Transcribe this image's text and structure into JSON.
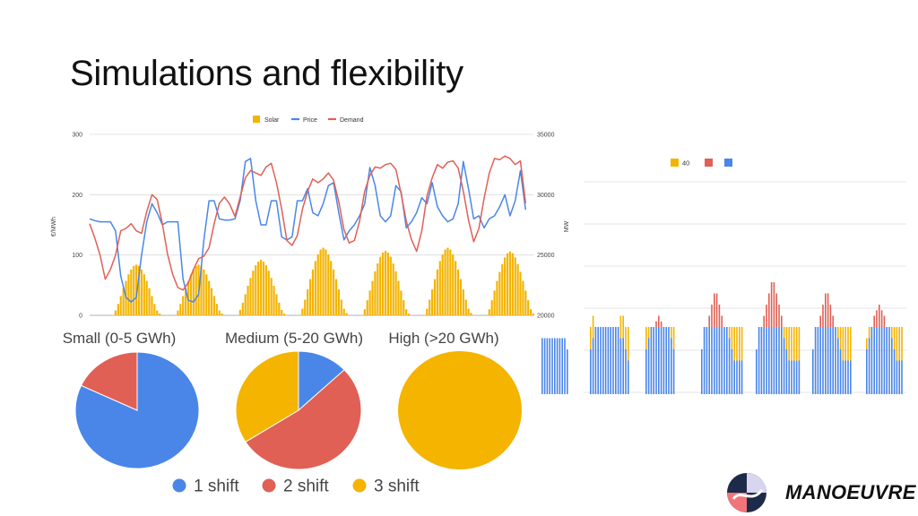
{
  "slide_title": "Simulations and flexibility",
  "chart_data": [
    {
      "type": "line",
      "legend": [
        "Solar",
        "Price",
        "Demand"
      ],
      "colors": {
        "Solar": "#f4b400",
        "Price": "#4a86e8",
        "Demand": "#e06055"
      },
      "y_left_label": "€/MWh",
      "y_left_ticks": [
        "300",
        "200",
        "100",
        "0"
      ],
      "y_left_lim": [
        0,
        300
      ],
      "y_right_ticks": [
        "35000",
        "30000",
        "25000",
        "20000"
      ],
      "y_right_lim": [
        20000,
        35000
      ],
      "grid": true,
      "x": [
        0,
        2,
        4,
        6,
        8,
        10,
        12,
        14,
        16,
        18,
        20,
        22,
        24,
        26,
        28,
        30,
        32,
        34,
        36,
        38,
        40,
        42,
        44,
        46,
        48,
        50,
        52,
        54,
        56,
        58,
        60,
        62,
        64,
        66,
        68,
        70,
        72,
        74,
        76,
        78,
        80,
        82,
        84,
        86,
        88,
        90,
        92,
        94,
        96,
        98,
        100,
        102,
        104,
        106,
        108,
        110,
        112,
        114,
        116,
        118,
        120,
        122,
        124,
        126,
        128,
        130,
        132,
        134,
        136,
        138,
        140,
        142,
        144,
        146,
        148,
        150,
        152,
        154,
        156,
        158,
        160,
        162,
        164,
        166,
        168
      ],
      "series": [
        {
          "name": "Price",
          "axis": "left",
          "values": [
            160,
            157,
            155,
            155,
            155,
            140,
            65,
            30,
            22,
            30,
            100,
            155,
            185,
            170,
            150,
            155,
            155,
            155,
            60,
            25,
            22,
            35,
            125,
            190,
            190,
            160,
            158,
            158,
            160,
            190,
            255,
            260,
            190,
            150,
            150,
            190,
            190,
            130,
            125,
            130,
            190,
            190,
            210,
            170,
            165,
            185,
            215,
            220,
            170,
            125,
            140,
            150,
            165,
            185,
            245,
            215,
            165,
            155,
            165,
            215,
            205,
            145,
            155,
            170,
            195,
            185,
            220,
            180,
            165,
            155,
            160,
            185,
            255,
            210,
            160,
            165,
            145,
            160,
            165,
            180,
            200,
            165,
            190,
            240,
            175
          ]
        },
        {
          "name": "Demand",
          "axis": "right",
          "values": [
            27600,
            26400,
            25000,
            23000,
            23800,
            25000,
            27000,
            27200,
            27600,
            27000,
            26800,
            28600,
            30000,
            29600,
            27600,
            25100,
            23400,
            22300,
            22100,
            22700,
            23800,
            24700,
            24900,
            25600,
            27600,
            29300,
            29800,
            29200,
            28200,
            29800,
            31400,
            32000,
            31800,
            31600,
            32300,
            32600,
            31000,
            28800,
            26200,
            25800,
            26600,
            28800,
            30300,
            31300,
            31000,
            31300,
            31800,
            31200,
            29400,
            27100,
            26000,
            26200,
            27800,
            30300,
            31600,
            32300,
            32200,
            32500,
            32600,
            32100,
            30100,
            27800,
            26300,
            25300,
            27000,
            29900,
            31400,
            32500,
            32200,
            32700,
            32800,
            32200,
            30300,
            27900,
            26100,
            27200,
            29700,
            31800,
            33000,
            32900,
            33200,
            33000,
            32500,
            32800,
            29300
          ]
        },
        {
          "name": "Solar",
          "axis": "left",
          "kind": "bars",
          "x": [
            10,
            11,
            12,
            13,
            14,
            15,
            16,
            17,
            18,
            19,
            20,
            21,
            22,
            23,
            24,
            25,
            26,
            27,
            34,
            35,
            36,
            37,
            38,
            39,
            40,
            41,
            42,
            43,
            44,
            45,
            46,
            47,
            48,
            49,
            50,
            51,
            58,
            59,
            60,
            61,
            62,
            63,
            64,
            65,
            66,
            67,
            68,
            69,
            70,
            71,
            72,
            73,
            74,
            75,
            82,
            83,
            84,
            85,
            86,
            87,
            88,
            89,
            90,
            91,
            92,
            93,
            94,
            95,
            96,
            97,
            98,
            99,
            106,
            107,
            108,
            109,
            110,
            111,
            112,
            113,
            114,
            115,
            116,
            117,
            118,
            119,
            120,
            121,
            122,
            123,
            130,
            131,
            132,
            133,
            134,
            135,
            136,
            137,
            138,
            139,
            140,
            141,
            142,
            143,
            144,
            145,
            146,
            147,
            154,
            155,
            156,
            157,
            158,
            159,
            160,
            161,
            162,
            163,
            164,
            165,
            166,
            167,
            168,
            169,
            170,
            171
          ],
          "values": [
            8,
            19,
            32,
            45,
            57,
            68,
            76,
            82,
            84,
            82,
            76,
            68,
            57,
            45,
            32,
            19,
            8,
            3,
            8,
            19,
            32,
            45,
            57,
            68,
            76,
            82,
            84,
            82,
            76,
            68,
            57,
            45,
            32,
            19,
            8,
            3,
            9,
            21,
            35,
            49,
            62,
            74,
            83,
            89,
            92,
            89,
            83,
            74,
            62,
            49,
            35,
            21,
            9,
            3,
            11,
            26,
            43,
            60,
            76,
            90,
            101,
            109,
            112,
            109,
            101,
            90,
            76,
            60,
            43,
            26,
            11,
            4,
            10,
            25,
            41,
            57,
            73,
            86,
            97,
            104,
            107,
            104,
            97,
            86,
            73,
            57,
            41,
            25,
            10,
            3,
            11,
            26,
            43,
            60,
            76,
            90,
            101,
            109,
            112,
            109,
            101,
            90,
            76,
            60,
            43,
            26,
            11,
            4,
            10,
            25,
            41,
            57,
            72,
            85,
            96,
            103,
            106,
            103,
            96,
            85,
            72,
            57,
            41,
            25,
            10,
            3
          ]
        }
      ]
    },
    {
      "type": "bar",
      "stacked": true,
      "legend": [
        "40",
        "",
        ""
      ],
      "colors": {
        "40": "#f4b400",
        "red": "#e06055",
        "blue": "#4a86e8"
      },
      "ylabel": "MW",
      "days": [
        {
          "blue": [
            5,
            5,
            5,
            5,
            5,
            5,
            5,
            5,
            5,
            5,
            4
          ],
          "red": [
            0,
            0,
            0,
            0,
            0,
            0,
            0,
            0,
            0,
            0,
            0
          ],
          "yellow": [
            0,
            0,
            0,
            0,
            0,
            0,
            0,
            0,
            0,
            0,
            0
          ]
        },
        {
          "blue": [
            4,
            5,
            6,
            6,
            6,
            6,
            6,
            6,
            6,
            6,
            6,
            6,
            5,
            5,
            4,
            3
          ],
          "red": [
            0,
            0,
            0,
            0,
            0,
            0,
            0,
            0,
            0,
            0,
            0,
            0,
            0,
            0,
            0,
            0
          ],
          "yellow": [
            2,
            2,
            0,
            0,
            0,
            0,
            0,
            0,
            0,
            0,
            0,
            0,
            2,
            2,
            2,
            3
          ]
        },
        {
          "blue": [
            4,
            5,
            6,
            6,
            6,
            6,
            6,
            6,
            6,
            6,
            5,
            4
          ],
          "red": [
            0,
            0,
            0,
            0,
            0.5,
            1,
            0.5,
            0,
            0,
            0,
            0,
            0
          ],
          "yellow": [
            2,
            1,
            0,
            0,
            0,
            0,
            0,
            0,
            0,
            0,
            1,
            2
          ]
        },
        {
          "blue": [
            4,
            6,
            6,
            6,
            6,
            6,
            6,
            6,
            6,
            6,
            6,
            5,
            4,
            3,
            3,
            3,
            3
          ],
          "red": [
            0,
            0,
            0,
            1,
            2,
            3,
            3,
            2,
            1,
            0,
            0,
            0,
            0,
            0,
            0,
            0,
            0
          ],
          "yellow": [
            0,
            0,
            0,
            0,
            0,
            0,
            0,
            0,
            0,
            0,
            0,
            1,
            2,
            3,
            3,
            3,
            3
          ]
        },
        {
          "blue": [
            4,
            6,
            6,
            6,
            6,
            6,
            6,
            6,
            6,
            6,
            6,
            5,
            4,
            3,
            3,
            3,
            3,
            3
          ],
          "red": [
            0,
            0,
            0,
            1,
            2,
            3,
            4,
            4,
            3,
            2,
            1,
            0,
            0,
            0,
            0,
            0,
            0,
            0
          ],
          "yellow": [
            0,
            0,
            0,
            0,
            0,
            0,
            0,
            0,
            0,
            0,
            0,
            1,
            2,
            3,
            3,
            3,
            3,
            3
          ]
        },
        {
          "blue": [
            4,
            6,
            6,
            6,
            6,
            6,
            6,
            6,
            6,
            6,
            5,
            4,
            3,
            3,
            3,
            3
          ],
          "red": [
            0,
            0,
            0,
            1,
            2,
            3,
            3,
            2,
            1,
            0,
            0,
            0,
            0,
            0,
            0,
            0
          ],
          "yellow": [
            0,
            0,
            0,
            0,
            0,
            0,
            0,
            0,
            0,
            0,
            1,
            2,
            3,
            3,
            3,
            3
          ]
        },
        {
          "blue": [
            4,
            5,
            6,
            6,
            6,
            6,
            6,
            6,
            6,
            6,
            5,
            4,
            3,
            3,
            3
          ],
          "red": [
            0,
            0,
            0,
            1,
            1.5,
            2,
            1.5,
            1,
            0,
            0,
            0,
            0,
            0,
            0,
            0
          ],
          "yellow": [
            1,
            1,
            0,
            0,
            0,
            0,
            0,
            0,
            0,
            0,
            1,
            2,
            3,
            3,
            3
          ]
        }
      ]
    },
    {
      "type": "pie",
      "title": "Small (0-5 GWh)",
      "slices": [
        {
          "label": "1 shift",
          "value": 82,
          "color": "#4a86e8"
        },
        {
          "label": "2 shift",
          "value": 18,
          "color": "#e06055"
        }
      ]
    },
    {
      "type": "pie",
      "title": "Medium (5-20 GWh)",
      "slices": [
        {
          "label": "1 shift",
          "value": 13,
          "color": "#4a86e8"
        },
        {
          "label": "2 shift",
          "value": 53,
          "color": "#e06055"
        },
        {
          "label": "3 shift",
          "value": 34,
          "color": "#f4b400"
        }
      ]
    },
    {
      "type": "pie",
      "title": "High (>20 GWh)",
      "slices": [
        {
          "label": "3 shift",
          "value": 100,
          "color": "#f4b400"
        }
      ]
    }
  ],
  "pie_legend": [
    {
      "label": "1 shift",
      "color": "#4a86e8"
    },
    {
      "label": "2 shift",
      "color": "#e06055"
    },
    {
      "label": "3 shift",
      "color": "#f4b400"
    }
  ],
  "logo": {
    "text": "MANOEUVRE"
  }
}
